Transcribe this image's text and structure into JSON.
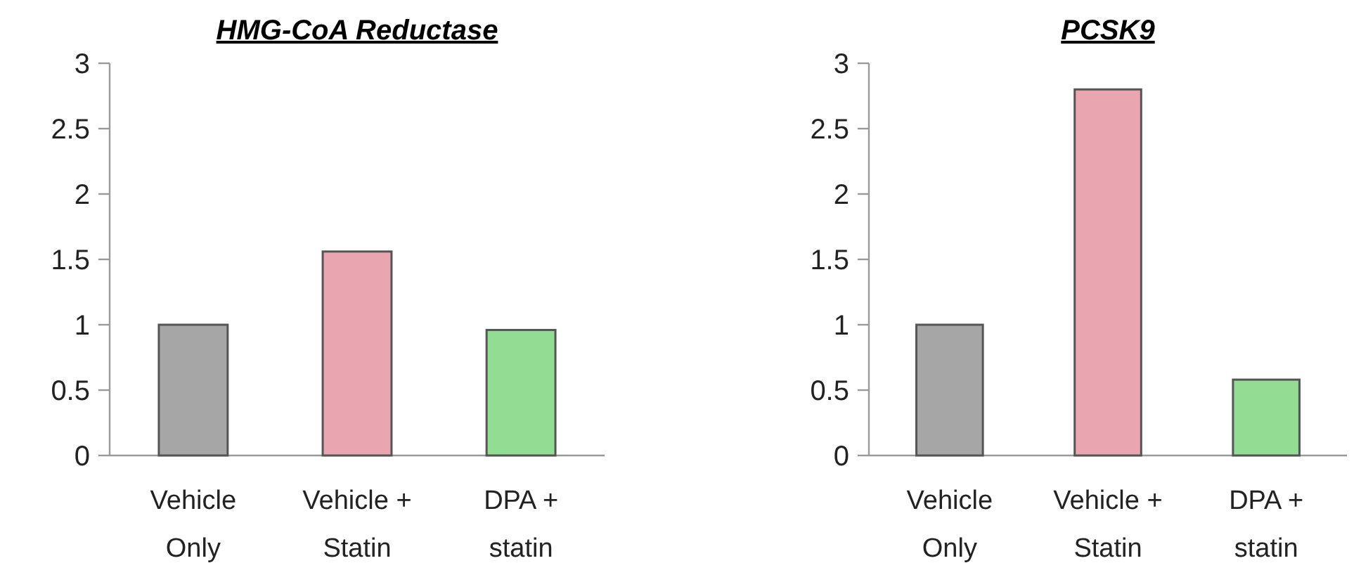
{
  "chart_data": [
    {
      "type": "bar",
      "title": "HMG-CoA Reductase",
      "categories": [
        "Vehicle Only",
        "Vehicle + Statin",
        "DPA + statin"
      ],
      "values": [
        1.0,
        1.56,
        0.96
      ],
      "colors": [
        "#a6a6a6",
        "#eaa6b0",
        "#93dc93"
      ],
      "ylim": [
        0,
        3
      ],
      "yticks": [
        0,
        0.5,
        1,
        1.5,
        2,
        2.5,
        3
      ],
      "grid": false
    },
    {
      "type": "bar",
      "title": "PCSK9",
      "categories": [
        "Vehicle Only",
        "Vehicle + Statin",
        "DPA + statin"
      ],
      "values": [
        1.0,
        2.8,
        0.58
      ],
      "colors": [
        "#a6a6a6",
        "#eaa6b0",
        "#93dc93"
      ],
      "ylim": [
        0,
        3
      ],
      "yticks": [
        0,
        0.5,
        1,
        1.5,
        2,
        2.5,
        3
      ],
      "grid": false
    }
  ]
}
